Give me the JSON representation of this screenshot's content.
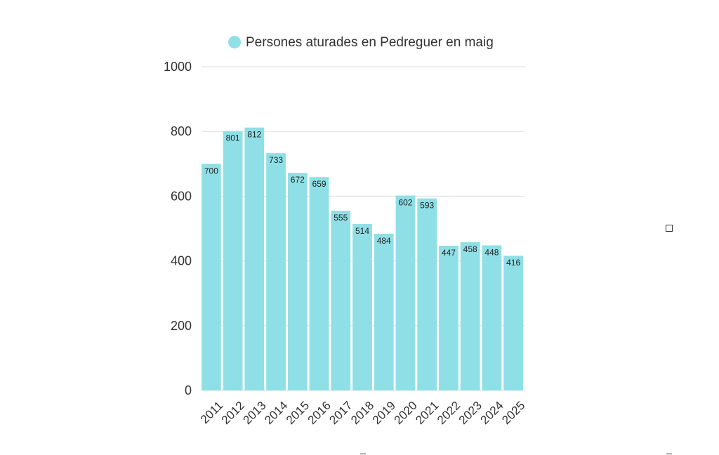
{
  "chart_data": {
    "type": "bar",
    "categories": [
      "2011",
      "2012",
      "2013",
      "2014",
      "2015",
      "2016",
      "2017",
      "2018",
      "2019",
      "2020",
      "2021",
      "2022",
      "2023",
      "2024",
      "2025"
    ],
    "series": [
      {
        "name": "Persones aturades en Pedreguer en maig",
        "values": [
          700,
          801,
          812,
          733,
          672,
          659,
          555,
          514,
          484,
          602,
          593,
          447,
          458,
          448,
          416
        ],
        "color": "#8fe0e6"
      }
    ],
    "ylim": [
      0,
      1000
    ],
    "yticks": [
      0,
      200,
      400,
      600,
      800,
      1000
    ],
    "grid": true,
    "legend_position": "top",
    "data_labels": true,
    "x_tick_rotation": "diagonal"
  }
}
